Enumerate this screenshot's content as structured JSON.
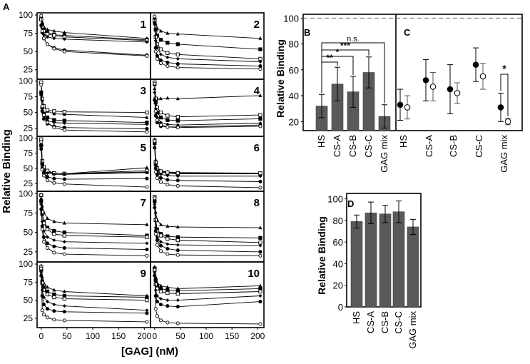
{
  "figure": {
    "panel_A_label": "A",
    "panel_B_label": "B",
    "panel_C_label": "C",
    "panel_D_label": "D"
  },
  "chart_data": [
    {
      "id": "A",
      "type": "line",
      "xlabel": "[GAG] (nM)",
      "ylabel": "Relative Binding",
      "x": [
        0,
        2,
        5,
        12,
        25,
        45,
        205
      ],
      "xlim": [
        -8,
        212
      ],
      "ylim": [
        12,
        103
      ],
      "xticks": [
        "0",
        "50",
        "100",
        "150",
        "200"
      ],
      "yticks": [
        "25",
        "50",
        "75",
        "100"
      ],
      "series_markers": [
        "triangle",
        "square",
        "open-square",
        "diamond",
        "circle",
        "open-circle"
      ],
      "subplots": [
        {
          "label": "1",
          "series": [
            {
              "marker": "triangle",
              "values": [
                97,
                90,
                84,
                80,
                78,
                76,
                68
              ]
            },
            {
              "marker": "square",
              "values": [
                95,
                86,
                80,
                76,
                73,
                72,
                66
              ]
            },
            {
              "marker": "open-square",
              "values": [
                94,
                84,
                78,
                74,
                72,
                70,
                65
              ]
            },
            {
              "marker": "diamond",
              "values": [
                85,
                78,
                73,
                70,
                68,
                67,
                63
              ]
            },
            {
              "marker": "circle",
              "values": [
                86,
                76,
                68,
                60,
                55,
                52,
                45
              ]
            },
            {
              "marker": "open-circle",
              "values": [
                99,
                78,
                68,
                60,
                54,
                50,
                44
              ]
            }
          ]
        },
        {
          "label": "2",
          "series": [
            {
              "marker": "triangle",
              "values": [
                97,
                88,
                82,
                78,
                75,
                74,
                68
              ]
            },
            {
              "marker": "square",
              "values": [
                94,
                80,
                72,
                66,
                62,
                60,
                53
              ]
            },
            {
              "marker": "open-square",
              "values": [
                92,
                70,
                60,
                53,
                48,
                46,
                40
              ]
            },
            {
              "marker": "diamond",
              "values": [
                90,
                65,
                55,
                46,
                42,
                40,
                36
              ]
            },
            {
              "marker": "circle",
              "values": [
                88,
                55,
                44,
                38,
                35,
                33,
                30
              ]
            },
            {
              "marker": "open-circle",
              "values": [
                98,
                50,
                40,
                34,
                30,
                28,
                26
              ]
            }
          ]
        },
        {
          "label": "3",
          "series": [
            {
              "marker": "triangle",
              "values": [
                96,
                70,
                60,
                52,
                48,
                47,
                42
              ]
            },
            {
              "marker": "square",
              "values": [
                82,
                58,
                48,
                42,
                38,
                37,
                34
              ]
            },
            {
              "marker": "open-square",
              "values": [
                98,
                72,
                60,
                54,
                52,
                51,
                50
              ]
            },
            {
              "marker": "diamond",
              "values": [
                80,
                56,
                44,
                37,
                34,
                33,
                31
              ]
            },
            {
              "marker": "circle",
              "values": [
                78,
                52,
                40,
                32,
                28,
                26,
                24
              ]
            },
            {
              "marker": "open-circle",
              "values": [
                94,
                60,
                46,
                34,
                26,
                22,
                19
              ]
            }
          ]
        },
        {
          "label": "4",
          "series": [
            {
              "marker": "triangle",
              "values": [
                88,
                74,
                72,
                72,
                73,
                72,
                77
              ]
            },
            {
              "marker": "square",
              "values": [
                95,
                66,
                50,
                42,
                38,
                37,
                40
              ]
            },
            {
              "marker": "open-square",
              "values": [
                98,
                72,
                58,
                50,
                45,
                43,
                46
              ]
            },
            {
              "marker": "diamond",
              "values": [
                82,
                56,
                42,
                34,
                31,
                30,
                33
              ]
            },
            {
              "marker": "circle",
              "values": [
                70,
                45,
                34,
                28,
                27,
                27,
                30
              ]
            },
            {
              "marker": "open-circle",
              "values": [
                96,
                52,
                38,
                30,
                27,
                26,
                28
              ]
            }
          ]
        },
        {
          "label": "5",
          "series": [
            {
              "marker": "triangle",
              "values": [
                96,
                62,
                52,
                45,
                42,
                41,
                51
              ]
            },
            {
              "marker": "square",
              "values": [
                88,
                58,
                50,
                44,
                42,
                41,
                44
              ]
            },
            {
              "marker": "open-square",
              "values": [
                98,
                62,
                52,
                46,
                42,
                41,
                46
              ]
            },
            {
              "marker": "diamond",
              "values": [
                86,
                54,
                46,
                42,
                40,
                40,
                43
              ]
            },
            {
              "marker": "circle",
              "values": [
                82,
                50,
                42,
                36,
                33,
                32,
                33
              ]
            },
            {
              "marker": "open-circle",
              "values": [
                94,
                48,
                38,
                30,
                26,
                24,
                19
              ]
            }
          ]
        },
        {
          "label": "6",
          "series": [
            {
              "marker": "triangle",
              "values": [
                98,
                64,
                52,
                46,
                44,
                43,
                42
              ]
            },
            {
              "marker": "square",
              "values": [
                92,
                58,
                48,
                44,
                42,
                41,
                41
              ]
            },
            {
              "marker": "open-square",
              "values": [
                96,
                60,
                50,
                45,
                43,
                42,
                42
              ]
            },
            {
              "marker": "diamond",
              "values": [
                90,
                54,
                44,
                40,
                38,
                37,
                37
              ]
            },
            {
              "marker": "circle",
              "values": [
                84,
                50,
                40,
                34,
                31,
                30,
                28
              ]
            },
            {
              "marker": "open-circle",
              "values": [
                95,
                44,
                34,
                27,
                23,
                21,
                18
              ]
            }
          ]
        },
        {
          "label": "7",
          "series": [
            {
              "marker": "triangle",
              "values": [
                94,
                84,
                76,
                68,
                64,
                62,
                60
              ]
            },
            {
              "marker": "square",
              "values": [
                90,
                74,
                64,
                56,
                52,
                50,
                46
              ]
            },
            {
              "marker": "open-square",
              "values": [
                98,
                76,
                62,
                54,
                48,
                46,
                44
              ]
            },
            {
              "marker": "diamond",
              "values": [
                86,
                64,
                52,
                44,
                40,
                38,
                36
              ]
            },
            {
              "marker": "circle",
              "values": [
                80,
                58,
                44,
                36,
                32,
                30,
                28
              ]
            },
            {
              "marker": "open-circle",
              "values": [
                98,
                54,
                38,
                30,
                24,
                22,
                20
              ]
            }
          ]
        },
        {
          "label": "8",
          "series": [
            {
              "marker": "triangle",
              "values": [
                94,
                76,
                66,
                60,
                58,
                57,
                56
              ]
            },
            {
              "marker": "square",
              "values": [
                90,
                66,
                54,
                48,
                45,
                44,
                43
              ]
            },
            {
              "marker": "open-square",
              "values": [
                96,
                66,
                52,
                46,
                42,
                40,
                37
              ]
            },
            {
              "marker": "diamond",
              "values": [
                86,
                56,
                44,
                38,
                35,
                34,
                33
              ]
            },
            {
              "marker": "circle",
              "values": [
                82,
                52,
                40,
                33,
                29,
                27,
                25
              ]
            },
            {
              "marker": "open-circle",
              "values": [
                94,
                48,
                34,
                26,
                22,
                21,
                20
              ]
            }
          ]
        },
        {
          "label": "9",
          "series": [
            {
              "marker": "triangle",
              "values": [
                98,
                82,
                74,
                68,
                64,
                62,
                56
              ]
            },
            {
              "marker": "square",
              "values": [
                92,
                76,
                68,
                62,
                58,
                56,
                54
              ]
            },
            {
              "marker": "open-square",
              "values": [
                96,
                74,
                64,
                58,
                54,
                52,
                50
              ]
            },
            {
              "marker": "diamond",
              "values": [
                88,
                64,
                54,
                48,
                44,
                42,
                36
              ]
            },
            {
              "marker": "circle",
              "values": [
                84,
                56,
                44,
                38,
                35,
                34,
                32
              ]
            },
            {
              "marker": "open-circle",
              "values": [
                94,
                36,
                30,
                26,
                23,
                22,
                20
              ]
            }
          ]
        },
        {
          "label": "10",
          "series": [
            {
              "marker": "triangle",
              "values": [
                96,
                82,
                74,
                70,
                68,
                66,
                70
              ]
            },
            {
              "marker": "square",
              "values": [
                94,
                78,
                70,
                66,
                64,
                63,
                66
              ]
            },
            {
              "marker": "open-square",
              "values": [
                92,
                72,
                66,
                62,
                60,
                59,
                62
              ]
            },
            {
              "marker": "diamond",
              "values": [
                88,
                64,
                56,
                52,
                50,
                50,
                56
              ]
            },
            {
              "marker": "circle",
              "values": [
                84,
                56,
                48,
                44,
                42,
                41,
                48
              ]
            },
            {
              "marker": "open-circle",
              "values": [
                92,
                38,
                28,
                22,
                19,
                18,
                17
              ]
            }
          ]
        }
      ]
    },
    {
      "id": "B",
      "type": "bar",
      "ylabel": "Relative Binding",
      "categories": [
        "HS",
        "CS-A",
        "CS-B",
        "CS-C",
        "GAG mix"
      ],
      "values": [
        32,
        49,
        43,
        58,
        24
      ],
      "errors": [
        9,
        13,
        12,
        12,
        9
      ],
      "ylim": [
        13,
        103
      ],
      "yticks": [
        20,
        40,
        60,
        80,
        100
      ],
      "reference_line": 100,
      "significance": [
        {
          "from": "HS",
          "to": "CS-A",
          "label": "**"
        },
        {
          "from": "HS",
          "to": "CS-B",
          "label": "*"
        },
        {
          "from": "HS",
          "to": "CS-C",
          "label": "***"
        },
        {
          "from": "HS",
          "to": "GAG mix",
          "label": "n.s."
        }
      ]
    },
    {
      "id": "C",
      "type": "scatter",
      "categories": [
        "HS",
        "CS-A",
        "CS-B",
        "CS-C",
        "GAG mix"
      ],
      "ylim": [
        13,
        103
      ],
      "reference_line": 100,
      "series": [
        {
          "name": "filled",
          "values": [
            33,
            52,
            45,
            64,
            31
          ],
          "errors": [
            12,
            16,
            19,
            13,
            11
          ]
        },
        {
          "name": "open",
          "values": [
            31,
            47,
            42,
            55,
            20
          ],
          "errors": [
            9,
            11,
            8,
            10,
            2.5
          ]
        }
      ],
      "significance": [
        {
          "category": "GAG mix",
          "label": "*"
        }
      ]
    },
    {
      "id": "D",
      "type": "bar",
      "ylabel": "Relative Binding",
      "categories": [
        "HS",
        "CS-A",
        "CS-B",
        "CS-C",
        "GAG mix"
      ],
      "values": [
        79,
        87,
        86,
        88,
        74
      ],
      "errors": [
        6,
        10,
        8,
        10,
        7
      ],
      "ylim": [
        0,
        105
      ],
      "yticks": [
        0,
        20,
        40,
        60,
        80,
        100
      ]
    }
  ]
}
